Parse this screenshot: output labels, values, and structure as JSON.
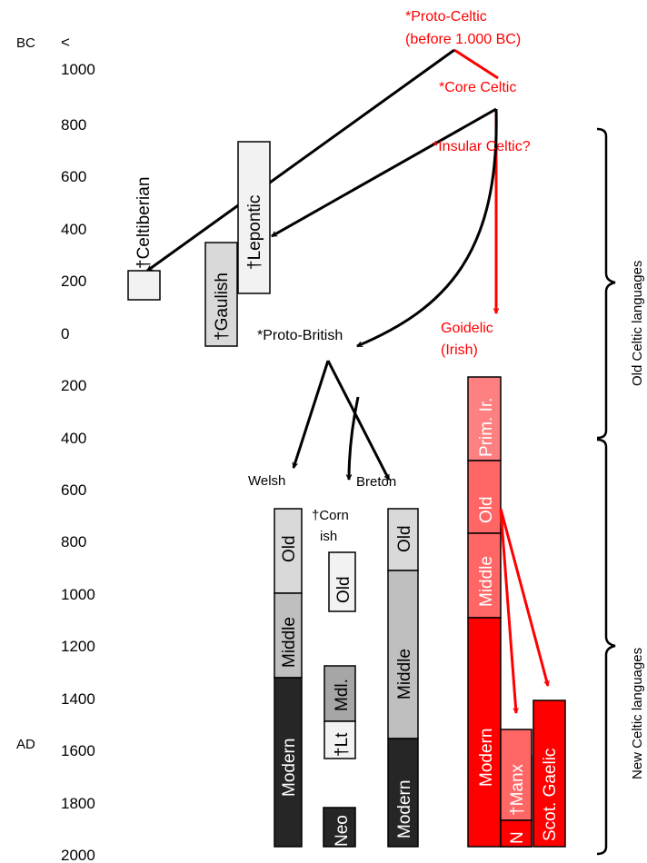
{
  "era": {
    "bc": "BC",
    "ad": "AD",
    "earlier": "<"
  },
  "years": [
    "1000",
    "800",
    "600",
    "400",
    "200",
    "0",
    "200",
    "400",
    "600",
    "800",
    "1000",
    "1200",
    "1400",
    "1600",
    "1800",
    "2000"
  ],
  "nodes": {
    "proto_celtic_1": "*Proto-Celtic",
    "proto_celtic_2": "(before 1.000 BC)",
    "core_celtic": "*Core Celtic",
    "insular_celtic": "*Insular Celtic?",
    "goidelic_1": "Goidelic",
    "goidelic_2": "(Irish)",
    "proto_british": "*Proto-British",
    "welsh": "Welsh",
    "breton": "Breton",
    "cornish_1": "†Corn",
    "cornish_2": "ish"
  },
  "continental": {
    "celtiberian": "†Celtiberian",
    "gaulish": "†Gaulish",
    "lepontic": "†Lepontic"
  },
  "welsh_stages": {
    "old": "Old",
    "middle": "Middle",
    "modern": "Modern"
  },
  "cornish_stages": {
    "old": "Old",
    "middle": "Mdl.",
    "late": "†Lt",
    "neo": "Neo"
  },
  "breton_stages": {
    "old": "Old",
    "middle": "Middle",
    "modern": "Modern"
  },
  "irish_stages": {
    "primitive": "Prim. Ir.",
    "old": "Old",
    "middle": "Middle",
    "modern": "Modern",
    "new": "N"
  },
  "branches": {
    "manx": "†Manx",
    "scottish_gaelic": "Scot. Gaelic"
  },
  "groups": {
    "old": "Old Celtic languages",
    "new": "New Celtic languages"
  },
  "colors": {
    "proto": "#ff0000",
    "bar_dark": "#262626",
    "bar_mid": "#bfbfbf",
    "bar_light": "#d9d9d9",
    "bar_lightest": "#f2f2f2",
    "red_light": "#ff8080",
    "red_mid": "#ff6666",
    "red": "#ff0000"
  }
}
